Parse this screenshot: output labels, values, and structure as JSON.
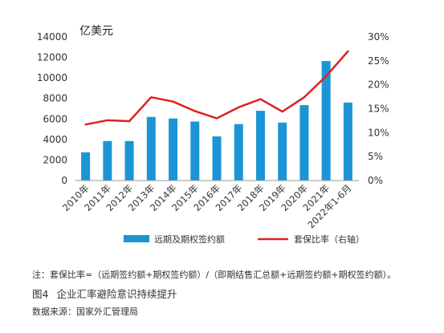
{
  "chart_data": {
    "type": "bar+line",
    "categories": [
      "2010年",
      "2011年",
      "2012年",
      "2013年",
      "2014年",
      "2015年",
      "2016年",
      "2017年",
      "2018年",
      "2019年",
      "2020年",
      "2021年",
      "2022年1-6月"
    ],
    "series": [
      {
        "name": "远期及期权签约额",
        "type": "bar",
        "axis": "left",
        "color": "#1b95d5",
        "values": [
          2750,
          3850,
          3850,
          6200,
          6050,
          5750,
          4300,
          5500,
          6800,
          5650,
          7350,
          11650,
          7600
        ]
      },
      {
        "name": "套保比率（右轴）",
        "type": "line",
        "axis": "right",
        "color": "#e02020",
        "values": [
          11.7,
          12.6,
          12.4,
          17.4,
          16.5,
          14.5,
          13.0,
          15.3,
          17.0,
          14.4,
          17.4,
          21.8,
          27.0
        ]
      }
    ],
    "ylabel": "亿美元",
    "yticks_left": [
      "0",
      "2000",
      "4000",
      "6000",
      "8000",
      "10000",
      "12000",
      "14000"
    ],
    "ylim_left": [
      0,
      14000
    ],
    "yticks_right": [
      "0%",
      "5%",
      "10%",
      "15%",
      "20%",
      "25%",
      "30%"
    ],
    "ylim_right": [
      0,
      30
    ],
    "legend_position": "bottom",
    "grid": false
  },
  "note": "注：套保比率=（远期签约额+期权签约额）/（即期结售汇总额+远期签约额+期权签约额）。",
  "figure_label": "图4",
  "figure_title": "企业汇率避险意识持续提升",
  "source": "数据来源：国家外汇管理局"
}
